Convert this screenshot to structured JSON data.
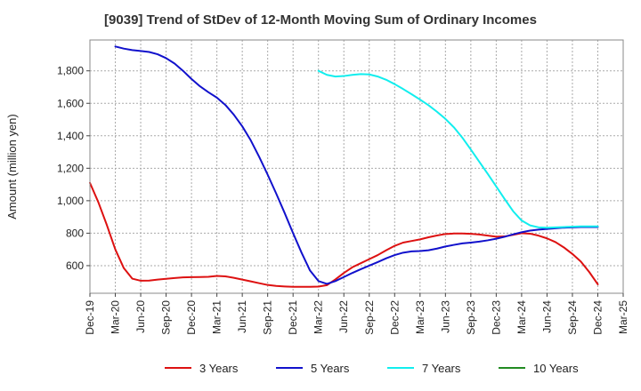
{
  "chart_data": {
    "type": "line",
    "title": "[9039]  Trend of StDev of 12-Month Moving Sum of Ordinary Incomes",
    "xlabel": "",
    "ylabel": "Amount (million yen)",
    "ylim": [
      430,
      1990
    ],
    "yticks": [
      600,
      800,
      1000,
      1200,
      1400,
      1600,
      1800
    ],
    "ytick_labels": [
      "600",
      "800",
      "1,000",
      "1,200",
      "1,400",
      "1,600",
      "1,800"
    ],
    "xticks": [
      "Dec-19",
      "Mar-20",
      "Jun-20",
      "Sep-20",
      "Dec-20",
      "Mar-21",
      "Jun-21",
      "Sep-21",
      "Dec-21",
      "Mar-22",
      "Jun-22",
      "Sep-22",
      "Dec-22",
      "Mar-23",
      "Jun-23",
      "Sep-23",
      "Dec-23",
      "Mar-24",
      "Jun-24",
      "Sep-24",
      "Dec-24",
      "Mar-25"
    ],
    "grid": true,
    "legend_position": "bottom",
    "series": [
      {
        "name": "3 Years",
        "color": "#dd1111",
        "x": [
          "Dec-19",
          "Jan-20",
          "Feb-20",
          "Mar-20",
          "Apr-20",
          "May-20",
          "Jun-20",
          "Jul-20",
          "Aug-20",
          "Sep-20",
          "Oct-20",
          "Nov-20",
          "Dec-20",
          "Jan-21",
          "Feb-21",
          "Mar-21",
          "Apr-21",
          "May-21",
          "Jun-21",
          "Jul-21",
          "Aug-21",
          "Sep-21",
          "Oct-21",
          "Nov-21",
          "Dec-21",
          "Jan-22",
          "Feb-22",
          "Mar-22",
          "Apr-22",
          "May-22",
          "Jun-22",
          "Jul-22",
          "Aug-22",
          "Sep-22",
          "Oct-22",
          "Nov-22",
          "Dec-22",
          "Jan-23",
          "Feb-23",
          "Mar-23",
          "Apr-23",
          "May-23",
          "Jun-23",
          "Jul-23",
          "Aug-23",
          "Sep-23",
          "Oct-23",
          "Nov-23",
          "Dec-23",
          "Jan-24",
          "Feb-24",
          "Mar-24",
          "Apr-24",
          "May-24",
          "Jun-24",
          "Jul-24",
          "Aug-24",
          "Sep-24",
          "Oct-24",
          "Nov-24",
          "Dec-24"
        ],
        "values": [
          1110,
          990,
          850,
          700,
          585,
          520,
          507,
          508,
          514,
          519,
          524,
          528,
          529,
          530,
          531,
          537,
          534,
          525,
          514,
          503,
          492,
          481,
          475,
          472,
          470,
          470,
          470,
          471,
          480,
          515,
          555,
          590,
          615,
          640,
          665,
          695,
          722,
          742,
          752,
          762,
          775,
          786,
          795,
          798,
          798,
          796,
          792,
          785,
          778,
          780,
          790,
          800,
          797,
          785,
          768,
          745,
          712,
          672,
          625,
          560,
          485
        ]
      },
      {
        "name": "5 Years",
        "color": "#1111cc",
        "x": [
          "Mar-20",
          "Apr-20",
          "May-20",
          "Jun-20",
          "Jul-20",
          "Aug-20",
          "Sep-20",
          "Oct-20",
          "Nov-20",
          "Dec-20",
          "Jan-21",
          "Feb-21",
          "Mar-21",
          "Apr-21",
          "May-21",
          "Jun-21",
          "Jul-21",
          "Aug-21",
          "Sep-21",
          "Oct-21",
          "Nov-21",
          "Dec-21",
          "Jan-22",
          "Feb-22",
          "Mar-22",
          "Apr-22",
          "May-22",
          "Jun-22",
          "Jul-22",
          "Aug-22",
          "Sep-22",
          "Oct-22",
          "Nov-22",
          "Dec-22",
          "Jan-23",
          "Feb-23",
          "Mar-23",
          "Apr-23",
          "May-23",
          "Jun-23",
          "Jul-23",
          "Aug-23",
          "Sep-23",
          "Oct-23",
          "Nov-23",
          "Dec-23",
          "Jan-24",
          "Feb-24",
          "Mar-24",
          "Apr-24",
          "May-24",
          "Jun-24",
          "Jul-24",
          "Aug-24",
          "Sep-24",
          "Oct-24",
          "Nov-24",
          "Dec-24"
        ],
        "values": [
          1950,
          1937,
          1928,
          1922,
          1916,
          1902,
          1878,
          1845,
          1800,
          1750,
          1705,
          1668,
          1635,
          1590,
          1530,
          1458,
          1372,
          1270,
          1160,
          1045,
          925,
          800,
          680,
          570,
          505,
          488,
          505,
          530,
          555,
          578,
          600,
          622,
          645,
          665,
          680,
          688,
          690,
          695,
          705,
          718,
          728,
          737,
          742,
          748,
          756,
          766,
          778,
          793,
          806,
          816,
          822,
          826,
          830,
          834,
          836,
          838,
          838,
          838
        ]
      },
      {
        "name": "7 Years",
        "color": "#11eeee",
        "x": [
          "Mar-22",
          "Apr-22",
          "May-22",
          "Jun-22",
          "Jul-22",
          "Aug-22",
          "Sep-22",
          "Oct-22",
          "Nov-22",
          "Dec-22",
          "Jan-23",
          "Feb-23",
          "Mar-23",
          "Apr-23",
          "May-23",
          "Jun-23",
          "Jul-23",
          "Aug-23",
          "Sep-23",
          "Oct-23",
          "Nov-23",
          "Dec-23",
          "Jan-24",
          "Feb-24",
          "Mar-24",
          "Apr-24",
          "May-24",
          "Jun-24",
          "Jul-24",
          "Aug-24",
          "Sep-24",
          "Oct-24",
          "Nov-24",
          "Dec-24"
        ],
        "values": [
          1800,
          1775,
          1765,
          1768,
          1775,
          1780,
          1778,
          1765,
          1745,
          1718,
          1688,
          1656,
          1623,
          1588,
          1548,
          1504,
          1452,
          1388,
          1315,
          1240,
          1165,
          1088,
          1010,
          935,
          878,
          848,
          836,
          834,
          836,
          838,
          840,
          842,
          842,
          842
        ]
      },
      {
        "name": "10 Years",
        "color": "#228b22",
        "x": [],
        "values": []
      }
    ]
  }
}
